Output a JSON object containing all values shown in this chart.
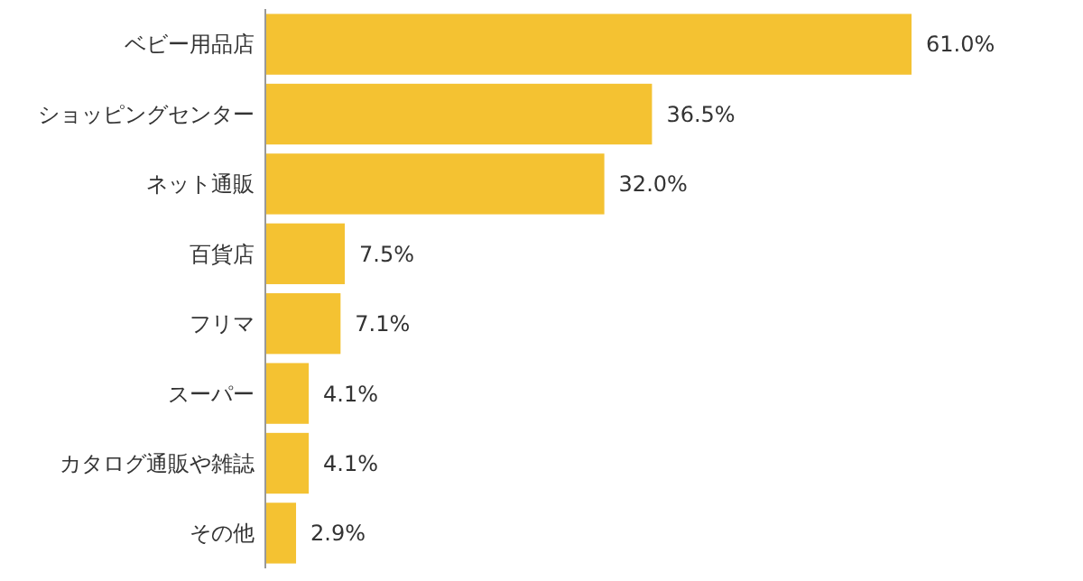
{
  "chart_data": {
    "type": "bar",
    "orientation": "horizontal",
    "value_labels": [
      "61.0%",
      "36.5%",
      "32.0%",
      "7.5%",
      "7.1%",
      "4.1%",
      "4.1%",
      "2.9%"
    ],
    "categories": [
      "ベビー用品店",
      "ショッピングセンター",
      "ネット通販",
      "百貨店",
      "フリマ",
      "スーパー",
      "カタログ通販や雑誌",
      "その他"
    ],
    "values": [
      61.0,
      36.5,
      32.0,
      7.5,
      7.1,
      4.1,
      4.1,
      2.9
    ],
    "color": "#f4c232"
  }
}
